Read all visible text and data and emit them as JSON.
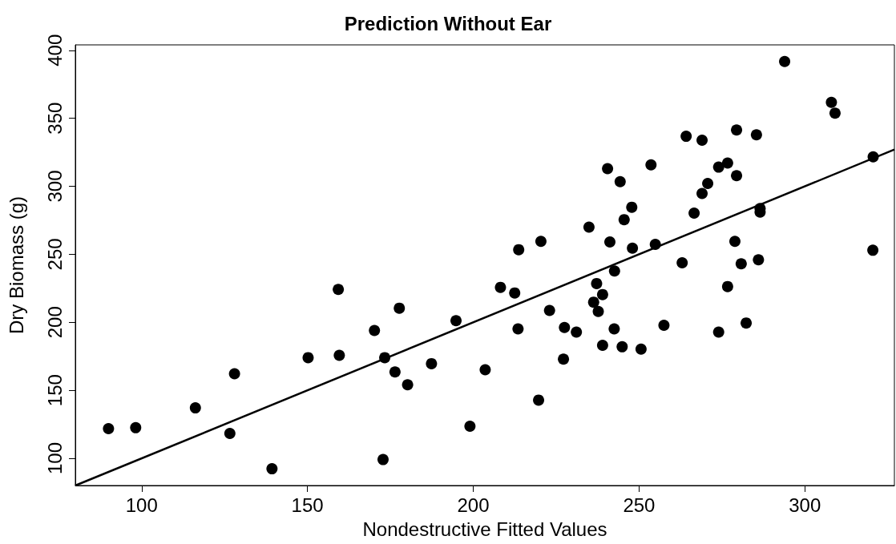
{
  "chart_data": {
    "type": "scatter",
    "title": "Prediction Without Ear",
    "xlabel": "Nondestructive Fitted Values",
    "ylabel": "Dry Biomass (g)",
    "xlim": [
      80,
      327
    ],
    "ylim": [
      80,
      404
    ],
    "xticks": [
      100,
      150,
      200,
      250,
      300
    ],
    "yticks": [
      100,
      150,
      200,
      250,
      300,
      350,
      400
    ],
    "grid": false,
    "marker": "circle",
    "series": [
      {
        "type": "scatter",
        "color": "#000000",
        "x": [
          90.0,
          98.2,
          116.2,
          128.0,
          126.6,
          139.3,
          150.2,
          159.3,
          159.6,
          170.2,
          177.7,
          173.3,
          176.4,
          180.2,
          172.8,
          187.4,
          194.8,
          199.0,
          203.6,
          208.2,
          212.5,
          213.7,
          213.5,
          220.4,
          219.7,
          223.0,
          227.5,
          227.2,
          231.1,
          234.9,
          237.2,
          236.3,
          237.7,
          239.0,
          239.0,
          240.5,
          241.2,
          242.6,
          242.5,
          244.3,
          247.8,
          245.5,
          248.0,
          244.9,
          250.6,
          253.6,
          254.9,
          257.5,
          264.2,
          269.0,
          263.0,
          266.6,
          269.0,
          270.7,
          274.0,
          276.7,
          279.4,
          279.4,
          285.4,
          274.0,
          276.7,
          278.9,
          280.8,
          282.3,
          286.0,
          286.5,
          286.5,
          293.9,
          308.0,
          309.1,
          320.6,
          320.5
        ],
        "values": [
          121.8,
          122.5,
          137.1,
          162.2,
          118.3,
          92.3,
          174.0,
          224.2,
          175.7,
          194.0,
          210.4,
          174.0,
          163.5,
          154.1,
          99.1,
          169.6,
          201.2,
          123.6,
          165.1,
          225.7,
          221.6,
          253.4,
          195.2,
          259.5,
          142.8,
          208.7,
          196.2,
          172.9,
          192.8,
          270.0,
          228.5,
          214.8,
          208.0,
          220.4,
          183.1,
          313.0,
          259.1,
          237.7,
          195.2,
          303.4,
          284.6,
          275.5,
          254.5,
          182.0,
          180.3,
          315.8,
          257.3,
          197.8,
          336.8,
          333.9,
          243.8,
          280.3,
          294.7,
          302.1,
          314.1,
          317.1,
          341.4,
          307.8,
          337.9,
          192.8,
          226.3,
          259.5,
          243.0,
          199.5,
          246.0,
          283.7,
          281.1,
          391.8,
          361.7,
          353.8,
          321.7,
          253.0
        ]
      },
      {
        "type": "line",
        "color": "#000000",
        "marker": "none",
        "line_style": "solid",
        "x": [
          80,
          327
        ],
        "values": [
          80,
          327
        ]
      }
    ]
  }
}
